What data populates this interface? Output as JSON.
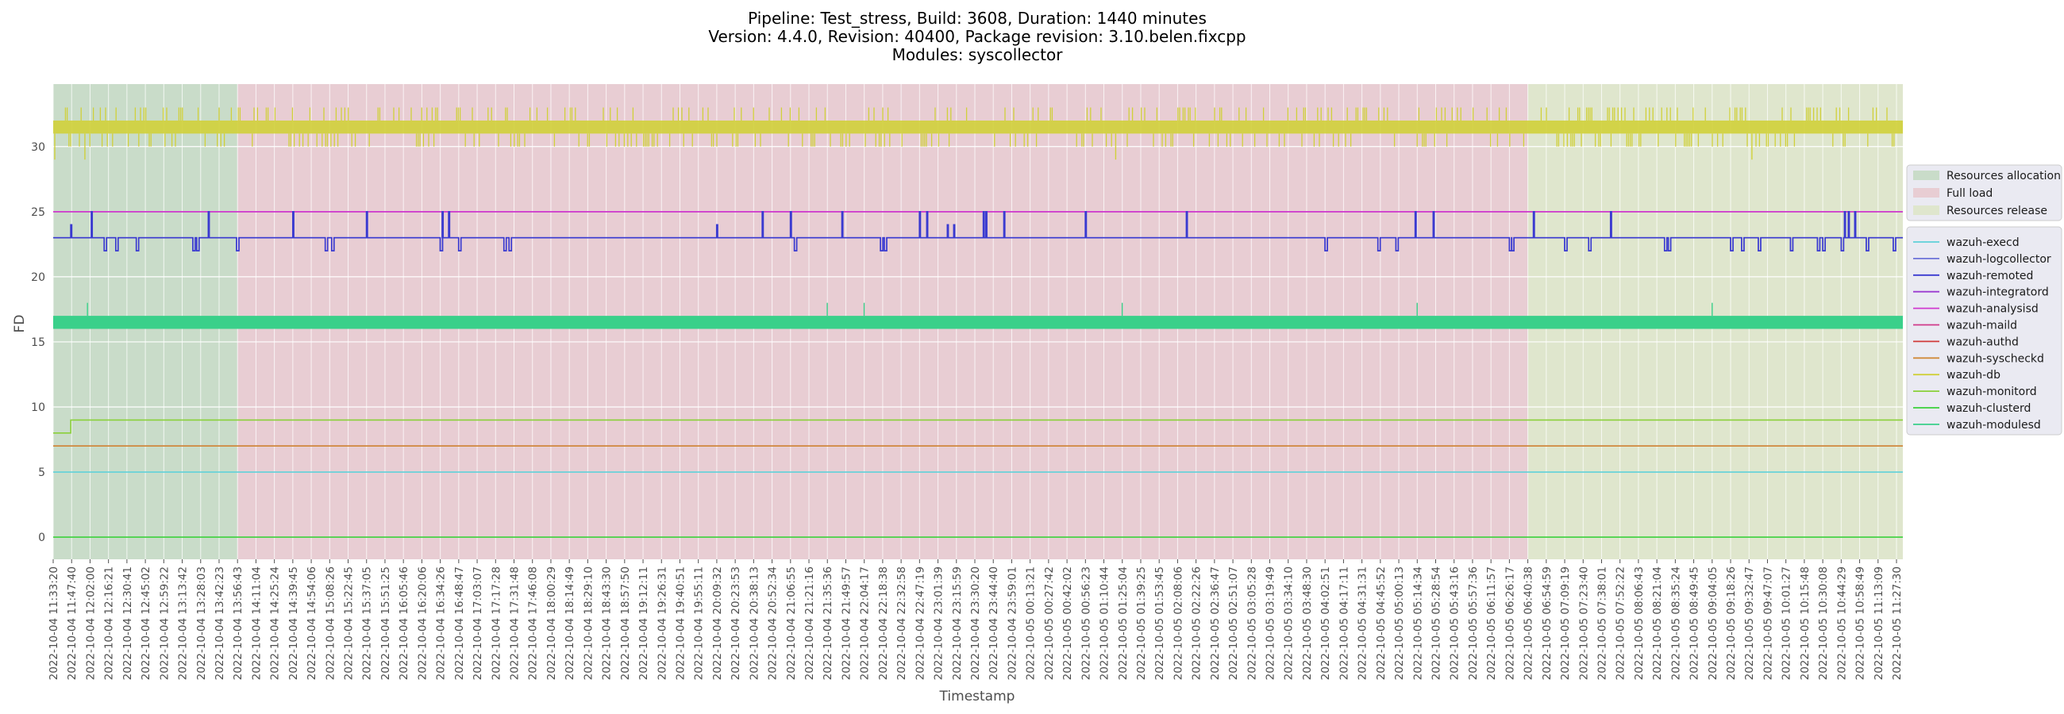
{
  "chart_data": {
    "type": "line",
    "title_lines": [
      "Pipeline: Test_stress, Build: 3608, Duration: 1440 minutes",
      "Version: 4.4.0, Revision: 40400, Package revision: 3.10.belen.fixcpp",
      "Modules: syscollector"
    ],
    "xlabel": "Timestamp",
    "ylabel": "FD",
    "ylim": [
      -1.7,
      34.8
    ],
    "yticks": [
      0,
      5,
      10,
      15,
      20,
      25,
      30
    ],
    "grid": true,
    "x_tick_labels": [
      "2022-10-04 11:33:20",
      "2022-10-04 11:47:40",
      "2022-10-04 12:02:00",
      "2022-10-04 12:16:21",
      "2022-10-04 12:30:41",
      "2022-10-04 12:45:02",
      "2022-10-04 12:59:22",
      "2022-10-04 13:13:42",
      "2022-10-04 13:28:03",
      "2022-10-04 13:42:23",
      "2022-10-04 13:56:43",
      "2022-10-04 14:11:04",
      "2022-10-04 14:25:24",
      "2022-10-04 14:39:45",
      "2022-10-04 14:54:06",
      "2022-10-04 15:08:26",
      "2022-10-04 15:22:45",
      "2022-10-04 15:37:05",
      "2022-10-04 15:51:25",
      "2022-10-04 16:05:46",
      "2022-10-04 16:20:06",
      "2022-10-04 16:34:26",
      "2022-10-04 16:48:47",
      "2022-10-04 17:03:07",
      "2022-10-04 17:17:28",
      "2022-10-04 17:31:48",
      "2022-10-04 17:46:08",
      "2022-10-04 18:00:29",
      "2022-10-04 18:14:49",
      "2022-10-04 18:29:10",
      "2022-10-04 18:43:30",
      "2022-10-04 18:57:50",
      "2022-10-04 19:12:11",
      "2022-10-04 19:26:31",
      "2022-10-04 19:40:51",
      "2022-10-04 19:55:11",
      "2022-10-04 20:09:32",
      "2022-10-04 20:23:53",
      "2022-10-04 20:38:13",
      "2022-10-04 20:52:34",
      "2022-10-04 21:06:55",
      "2022-10-04 21:21:16",
      "2022-10-04 21:35:36",
      "2022-10-04 21:49:57",
      "2022-10-04 22:04:17",
      "2022-10-04 22:18:38",
      "2022-10-04 22:32:58",
      "2022-10-04 22:47:19",
      "2022-10-04 23:01:39",
      "2022-10-04 23:15:59",
      "2022-10-04 23:30:20",
      "2022-10-04 23:44:40",
      "2022-10-04 23:59:01",
      "2022-10-05 00:13:21",
      "2022-10-05 00:27:42",
      "2022-10-05 00:42:02",
      "2022-10-05 00:56:23",
      "2022-10-05 01:10:44",
      "2022-10-05 01:25:04",
      "2022-10-05 01:39:25",
      "2022-10-05 01:53:45",
      "2022-10-05 02:08:06",
      "2022-10-05 02:22:26",
      "2022-10-05 02:36:47",
      "2022-10-05 02:51:07",
      "2022-10-05 03:05:28",
      "2022-10-05 03:19:49",
      "2022-10-05 03:34:10",
      "2022-10-05 03:48:30",
      "2022-10-05 04:02:51",
      "2022-10-05 04:17:11",
      "2022-10-05 04:31:31",
      "2022-10-05 04:45:52",
      "2022-10-05 05:00:13",
      "2022-10-05 05:14:34",
      "2022-10-05 05:28:54",
      "2022-10-05 05:43:16",
      "2022-10-05 05:57:36",
      "2022-10-05 06:11:57",
      "2022-10-05 06:26:17",
      "2022-10-05 06:40:38",
      "2022-10-05 06:54:59",
      "2022-10-05 07:09:19",
      "2022-10-05 07:23:40",
      "2022-10-05 07:38:01",
      "2022-10-05 07:52:22",
      "2022-10-05 08:06:43",
      "2022-10-05 08:21:04",
      "2022-10-05 08:35:24",
      "2022-10-05 08:49:45",
      "2022-10-05 09:04:05",
      "2022-10-05 09:18:26",
      "2022-10-05 09:32:47",
      "2022-10-05 09:47:07",
      "2022-10-05 10:01:27",
      "2022-10-05 10:15:48",
      "2022-10-05 10:30:08",
      "2022-10-05 10:44:29",
      "2022-10-05 10:58:49",
      "2022-10-05 11:13:09",
      "2022-10-05 11:27:30"
    ],
    "phases": [
      {
        "name": "Resources allocation",
        "start": "2022-10-04 11:33:20",
        "end": "2022-10-04 13:56:43",
        "color": "#c9dcc9"
      },
      {
        "name": "Full load",
        "start": "2022-10-04 13:56:43",
        "end": "2022-10-05 06:40:38",
        "color": "#e8cdd3"
      },
      {
        "name": "Resources release",
        "start": "2022-10-05 06:40:38",
        "end": "2022-10-05 11:33:20",
        "color": "#dfe6cd"
      }
    ],
    "series": [
      {
        "name": "wazuh-execd",
        "color": "#5fd0d8",
        "description": "constant",
        "value": 5
      },
      {
        "name": "wazuh-logcollector",
        "color": "#6c72d8",
        "description": "mostly 23, occasional changes to 22 / 24 / 25",
        "base": 23,
        "events": [
          [
            "2022-10-04 11:47:00",
            24
          ],
          [
            "2022-10-04 12:03:00",
            25
          ],
          [
            "2022-10-04 12:13:00",
            22
          ],
          [
            "2022-10-04 12:22:00",
            22
          ],
          [
            "2022-10-04 12:38:00",
            22
          ],
          [
            "2022-10-04 13:22:00",
            22
          ],
          [
            "2022-10-04 13:25:00",
            22
          ],
          [
            "2022-10-04 13:34:00",
            25
          ],
          [
            "2022-10-04 13:56:00",
            22
          ],
          [
            "2022-10-04 14:39:45",
            25
          ],
          [
            "2022-10-04 15:05:00",
            22
          ],
          [
            "2022-10-04 15:10:00",
            22
          ],
          [
            "2022-10-04 15:37:05",
            25
          ],
          [
            "2022-10-04 16:34:26",
            22
          ],
          [
            "2022-10-04 16:36:00",
            25
          ],
          [
            "2022-10-04 16:41:00",
            25
          ],
          [
            "2022-10-04 16:48:47",
            22
          ],
          [
            "2022-10-04 17:24:00",
            22
          ],
          [
            "2022-10-04 17:28:00",
            22
          ],
          [
            "2022-10-04 20:09:32",
            24
          ],
          [
            "2022-10-04 20:45:00",
            25
          ],
          [
            "2022-10-04 21:06:55",
            25
          ],
          [
            "2022-10-04 21:10:00",
            22
          ],
          [
            "2022-10-04 21:47:00",
            25
          ],
          [
            "2022-10-04 22:17:00",
            22
          ],
          [
            "2022-10-04 22:20:00",
            22
          ],
          [
            "2022-10-04 22:47:19",
            25
          ],
          [
            "2022-10-04 22:53:00",
            25
          ],
          [
            "2022-10-04 23:09:00",
            24
          ],
          [
            "2022-10-04 23:14:00",
            24
          ],
          [
            "2022-10-04 23:37:00",
            25
          ],
          [
            "2022-10-04 23:39:00",
            25
          ],
          [
            "2022-10-04 23:53:00",
            25
          ],
          [
            "2022-10-05 00:56:23",
            25
          ],
          [
            "2022-10-05 02:15:00",
            25
          ],
          [
            "2022-10-05 04:02:51",
            22
          ],
          [
            "2022-10-05 04:44:00",
            22
          ],
          [
            "2022-10-05 04:58:00",
            22
          ],
          [
            "2022-10-05 05:13:00",
            25
          ],
          [
            "2022-10-05 05:27:00",
            25
          ],
          [
            "2022-10-05 06:26:17",
            22
          ],
          [
            "2022-10-05 06:28:00",
            22
          ],
          [
            "2022-10-05 06:45:00",
            25
          ],
          [
            "2022-10-05 07:09:19",
            22
          ],
          [
            "2022-10-05 07:28:00",
            22
          ],
          [
            "2022-10-05 07:45:00",
            25
          ],
          [
            "2022-10-05 08:27:00",
            22
          ],
          [
            "2022-10-05 08:30:00",
            22
          ],
          [
            "2022-10-05 09:18:26",
            22
          ],
          [
            "2022-10-05 09:27:00",
            22
          ],
          [
            "2022-10-05 09:40:00",
            22
          ],
          [
            "2022-10-05 10:05:00",
            22
          ],
          [
            "2022-10-05 10:26:00",
            22
          ],
          [
            "2022-10-05 10:30:08",
            22
          ],
          [
            "2022-10-05 10:44:29",
            22
          ],
          [
            "2022-10-05 10:47:00",
            25
          ],
          [
            "2022-10-05 10:50:00",
            25
          ],
          [
            "2022-10-05 10:55:00",
            25
          ],
          [
            "2022-10-05 11:04:00",
            22
          ],
          [
            "2022-10-05 11:25:00",
            22
          ]
        ]
      },
      {
        "name": "wazuh-remoted",
        "color": "#3a3ad0",
        "description": "same as wazuh-logcollector (overlapping)",
        "same_as": "wazuh-logcollector"
      },
      {
        "name": "wazuh-integratord",
        "color": "#9b3ad0",
        "description": "constant",
        "value": 25
      },
      {
        "name": "wazuh-analysisd",
        "color": "#d03ad0",
        "description": "constant",
        "value": 25
      },
      {
        "name": "wazuh-maild",
        "color": "#d03a8a",
        "description": "constant",
        "value": 25
      },
      {
        "name": "wazuh-authd",
        "color": "#d03a3a",
        "description": "constant",
        "value": 7
      },
      {
        "name": "wazuh-syscheckd",
        "color": "#d08a3a",
        "description": "constant",
        "value": 7
      },
      {
        "name": "wazuh-db",
        "color": "#d0d03a",
        "description": "oscillates rapidly between 31 and 32 with drops to 29/30 and spikes to 33",
        "base_low": 31,
        "base_high": 32,
        "min": 29,
        "max": 33
      },
      {
        "name": "wazuh-monitord",
        "color": "#8ad03a",
        "description": "8 for the first minutes then 9",
        "initial": 8,
        "value": 9,
        "change_at": "2022-10-04 11:47:00"
      },
      {
        "name": "wazuh-clusterd",
        "color": "#3ad03a",
        "description": "constant",
        "value": 0
      },
      {
        "name": "wazuh-modulesd",
        "color": "#3ad08a",
        "description": "oscillates rapidly between 16 and 17, rare spikes to 18",
        "base_low": 16,
        "base_high": 17,
        "spikes": [
          "2022-10-04 12:00:00",
          "2022-10-04 21:35:36",
          "2022-10-04 22:04:17",
          "2022-10-05 01:25:04",
          "2022-10-05 05:14:34",
          "2022-10-05 09:04:05"
        ]
      }
    ],
    "legend": {
      "placement": "right",
      "phase_entries": [
        "Resources allocation",
        "Full load",
        "Resources release"
      ],
      "series_entries": [
        "wazuh-execd",
        "wazuh-logcollector",
        "wazuh-remoted",
        "wazuh-integratord",
        "wazuh-analysisd",
        "wazuh-maild",
        "wazuh-authd",
        "wazuh-syscheckd",
        "wazuh-db",
        "wazuh-monitord",
        "wazuh-clusterd",
        "wazuh-modulesd"
      ]
    }
  }
}
